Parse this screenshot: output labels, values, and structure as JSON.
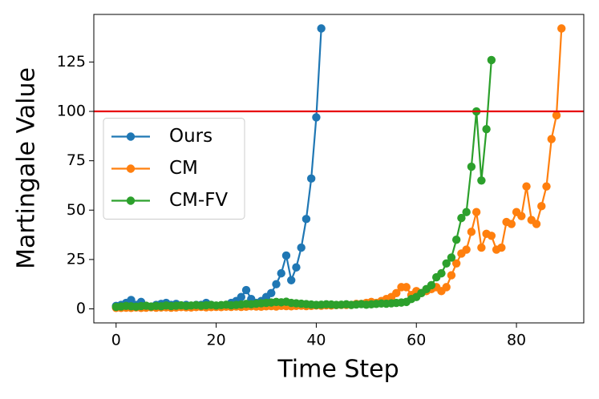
{
  "chart_data": {
    "type": "line",
    "xlabel": "Time Step",
    "ylabel": "Martingale Value",
    "xlim": [
      -4.45,
      93.45
    ],
    "xticks": [
      0,
      20,
      40,
      60,
      80
    ],
    "ylim": [
      -7.1,
      149.1
    ],
    "yticks": [
      0,
      25,
      50,
      75,
      100,
      125
    ],
    "legend": "center left",
    "reference_line": {
      "value": 100,
      "color": "#e8000b"
    },
    "series": [
      {
        "name": "Ours",
        "color": "#1f77b4",
        "x": [
          0,
          1,
          2,
          3,
          4,
          5,
          6,
          7,
          8,
          9,
          10,
          11,
          12,
          13,
          14,
          15,
          16,
          17,
          18,
          19,
          20,
          21,
          22,
          23,
          24,
          25,
          26,
          27,
          28,
          29,
          30,
          31,
          32,
          33,
          34,
          35,
          36,
          37,
          38,
          39,
          40,
          41
        ],
        "values": [
          1.5,
          2,
          3,
          4.5,
          2,
          3.5,
          1.5,
          1,
          2,
          2.5,
          3,
          2,
          2.5,
          1.5,
          2,
          1.5,
          2,
          2,
          3,
          2,
          1.5,
          1.5,
          2,
          3,
          4,
          6,
          9.5,
          5,
          3,
          4,
          6,
          8,
          12.5,
          18,
          27,
          14.5,
          21,
          31,
          45.5,
          66,
          97,
          142
        ]
      },
      {
        "name": "CM",
        "color": "#ff7f0e",
        "x": [
          0,
          1,
          2,
          3,
          4,
          5,
          6,
          7,
          8,
          9,
          10,
          11,
          12,
          13,
          14,
          15,
          16,
          17,
          18,
          19,
          20,
          21,
          22,
          23,
          24,
          25,
          26,
          27,
          28,
          29,
          30,
          31,
          32,
          33,
          34,
          35,
          36,
          37,
          38,
          39,
          40,
          41,
          42,
          43,
          44,
          45,
          46,
          47,
          48,
          49,
          50,
          51,
          52,
          53,
          54,
          55,
          56,
          57,
          58,
          59,
          60,
          61,
          62,
          63,
          64,
          65,
          66,
          67,
          68,
          69,
          70,
          71,
          72,
          73,
          74,
          75,
          76,
          77,
          78,
          79,
          80,
          81,
          82,
          83,
          84,
          85,
          86,
          87,
          88,
          89
        ],
        "values": [
          0.5,
          0.5,
          0.6,
          0.5,
          0.7,
          0.5,
          0.6,
          0.8,
          0.6,
          0.7,
          0.8,
          0.6,
          0.7,
          0.9,
          0.8,
          0.7,
          0.9,
          1,
          0.8,
          0.9,
          1,
          0.9,
          1.1,
          1,
          1.2,
          1,
          1.1,
          1.3,
          1.2,
          1.1,
          1.3,
          1.4,
          1.2,
          1.5,
          1.4,
          1.3,
          1.5,
          1.6,
          1.4,
          1.5,
          1.7,
          1.6,
          1.8,
          1.7,
          1.9,
          2,
          2,
          2,
          2.5,
          2.5,
          3,
          3.5,
          3,
          4,
          5,
          6,
          8,
          11,
          11,
          7,
          9,
          8,
          9,
          10,
          11,
          9,
          11,
          17,
          23,
          28,
          30,
          39,
          49,
          31,
          38,
          37,
          30,
          31,
          44,
          43,
          49,
          47,
          62,
          45,
          43,
          52,
          62,
          86,
          98,
          142
        ]
      },
      {
        "name": "CM-FV",
        "color": "#2ca02c",
        "x": [
          0,
          1,
          2,
          3,
          4,
          5,
          6,
          7,
          8,
          9,
          10,
          11,
          12,
          13,
          14,
          15,
          16,
          17,
          18,
          19,
          20,
          21,
          22,
          23,
          24,
          25,
          26,
          27,
          28,
          29,
          30,
          31,
          32,
          33,
          34,
          35,
          36,
          37,
          38,
          39,
          40,
          41,
          42,
          43,
          44,
          45,
          46,
          47,
          48,
          49,
          50,
          51,
          52,
          53,
          54,
          55,
          56,
          57,
          58,
          59,
          60,
          61,
          62,
          63,
          64,
          65,
          66,
          67,
          68,
          69,
          70,
          71,
          72,
          73,
          74,
          75
        ],
        "values": [
          1,
          1.2,
          1.5,
          1.3,
          1.1,
          1.4,
          1.6,
          1.2,
          1.5,
          1.3,
          1.7,
          1.4,
          1.6,
          1.8,
          1.5,
          1.7,
          1.9,
          1.6,
          1.8,
          2,
          1.7,
          1.9,
          2.1,
          1.8,
          2,
          2.2,
          2.5,
          2.3,
          2.6,
          2.8,
          3,
          3.2,
          3.5,
          3.3,
          3.6,
          3,
          2.8,
          2.6,
          2.4,
          2.2,
          2,
          2.1,
          2.3,
          2.2,
          2,
          2.1,
          2.3,
          2,
          2.2,
          2.4,
          2.1,
          2.3,
          2.5,
          2.7,
          2.6,
          2.8,
          3,
          3.2,
          3.5,
          5,
          6,
          8,
          10,
          12,
          16,
          18,
          23,
          26,
          35,
          46,
          49,
          72,
          100,
          65,
          91,
          126
        ]
      }
    ]
  }
}
